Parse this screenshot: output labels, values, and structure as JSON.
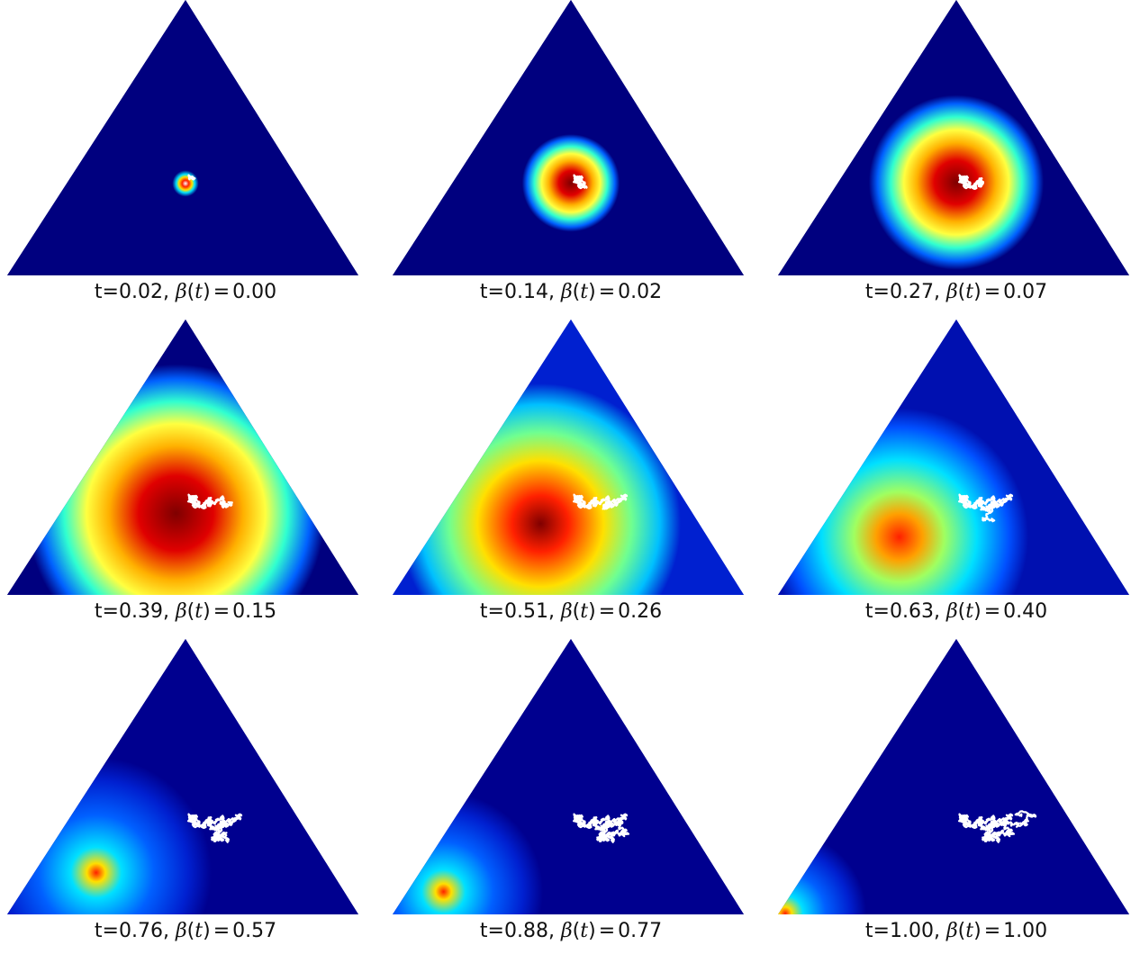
{
  "panels": [
    {
      "t_label": "t=0.02",
      "beta_value": "0.00",
      "t": 0.02,
      "beta": 0.0
    },
    {
      "t_label": "t=0.14",
      "beta_value": "0.02",
      "t": 0.14,
      "beta": 0.02
    },
    {
      "t_label": "t=0.27",
      "beta_value": "0.07",
      "t": 0.27,
      "beta": 0.07
    },
    {
      "t_label": "t=0.39",
      "beta_value": "0.15",
      "t": 0.39,
      "beta": 0.15
    },
    {
      "t_label": "t=0.51",
      "beta_value": "0.26",
      "t": 0.51,
      "beta": 0.26
    },
    {
      "t_label": "t=0.63",
      "beta_value": "0.40",
      "t": 0.63,
      "beta": 0.4
    },
    {
      "t_label": "t=0.76",
      "beta_value": "0.57",
      "t": 0.76,
      "beta": 0.57
    },
    {
      "t_label": "t=0.88",
      "beta_value": "0.77",
      "t": 0.88,
      "beta": 0.77
    },
    {
      "t_label": "t=1.00",
      "beta_value": "1.00",
      "t": 1.0,
      "beta": 1.0
    }
  ],
  "colors": {
    "background": "#ffffff",
    "trajectory": "#ffffff",
    "colormap": "jet"
  }
}
